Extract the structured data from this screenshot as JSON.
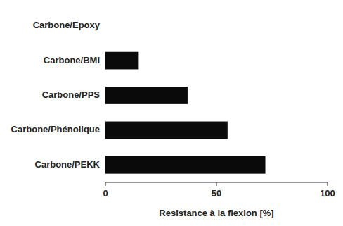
{
  "chart_data": {
    "type": "bar",
    "orientation": "horizontal",
    "categories": [
      "Carbone/Epoxy",
      "Carbone/BMI",
      "Carbone/PPS",
      "Carbone/Phénolique",
      "Carbone/PEKK"
    ],
    "values": [
      0,
      15,
      37,
      55,
      72
    ],
    "color": "#0a0a0a",
    "xlabel": "Resistance à la flexion [%]",
    "xlim": [
      0,
      100
    ],
    "xticks": [
      0,
      50,
      100
    ],
    "grid": false
  }
}
